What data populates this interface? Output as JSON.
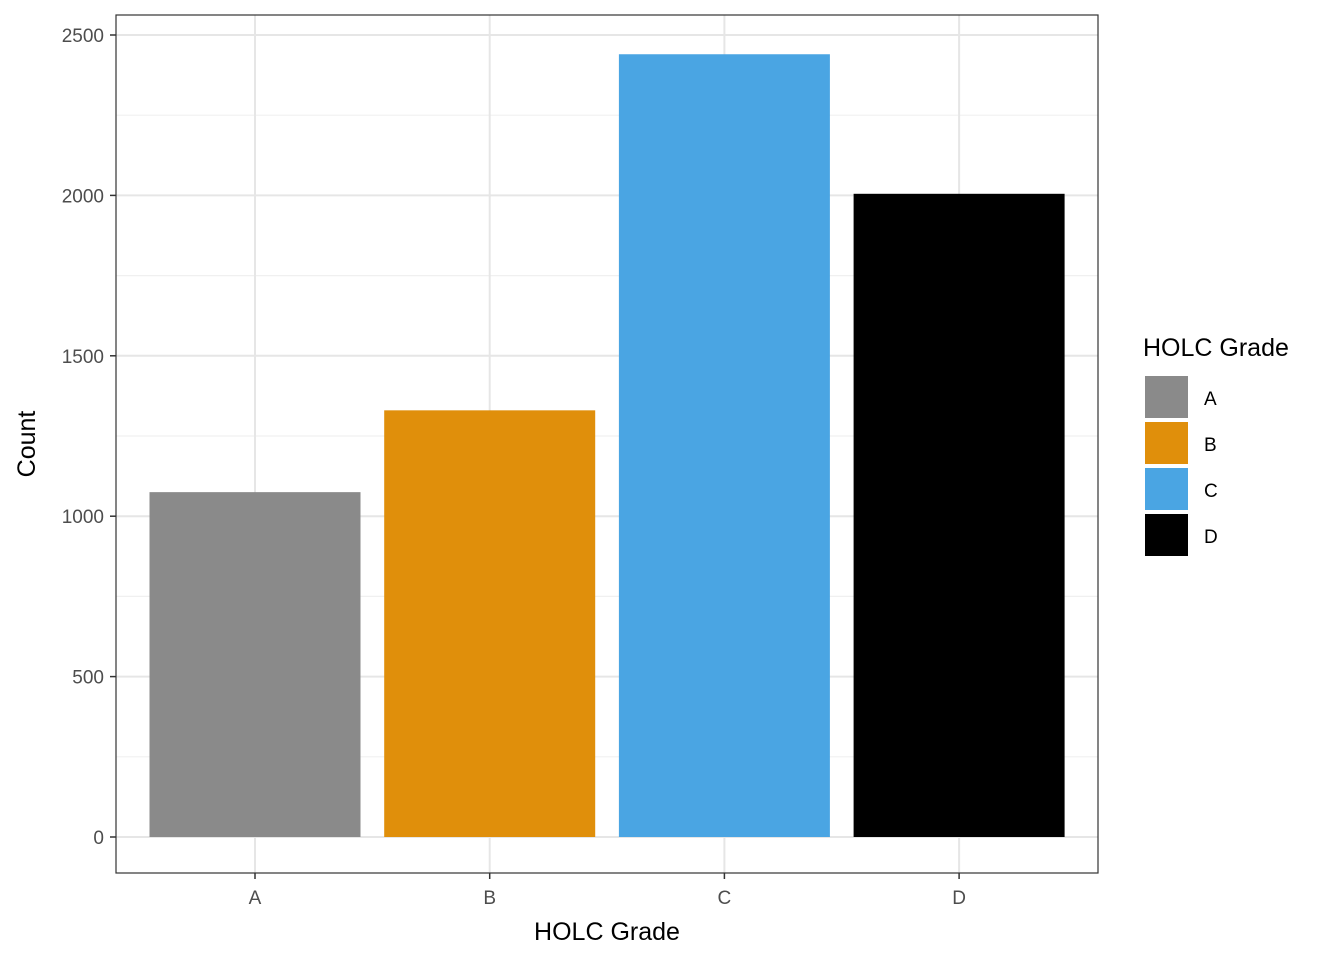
{
  "chart_data": {
    "type": "bar",
    "categories": [
      "A",
      "B",
      "C",
      "D"
    ],
    "values": [
      1075,
      1330,
      2440,
      2005
    ],
    "colors": [
      "#8a8a8a",
      "#e08f0b",
      "#4aa5e3",
      "#000000"
    ],
    "xlabel": "HOLC Grade",
    "ylabel": "Count",
    "ylim": [
      0,
      2500
    ],
    "yticks": [
      0,
      500,
      1000,
      1500,
      2000,
      2500
    ],
    "grid": true,
    "legend": {
      "title": "HOLC Grade",
      "placement": "right",
      "entries": [
        "A",
        "B",
        "C",
        "D"
      ]
    }
  }
}
